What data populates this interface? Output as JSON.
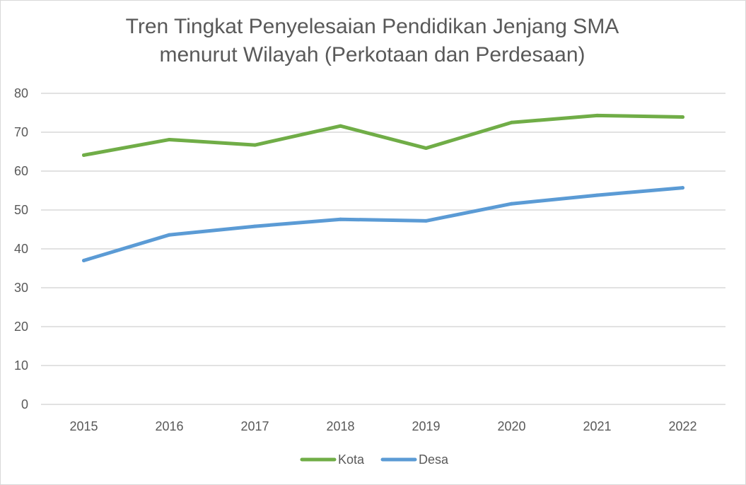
{
  "chart_data": {
    "type": "line",
    "title": [
      "Tren Tingkat Penyelesaian Pendidikan Jenjang SMA",
      "menurut Wilayah (Perkotaan dan Perdesaan)"
    ],
    "xlabel": "",
    "ylabel": "",
    "categories": [
      "2015",
      "2016",
      "2017",
      "2018",
      "2019",
      "2020",
      "2021",
      "2022"
    ],
    "series": [
      {
        "name": "Kota",
        "color": "#70AD47",
        "values": [
          64.1,
          68.1,
          66.7,
          71.6,
          65.9,
          72.5,
          74.3,
          73.9
        ]
      },
      {
        "name": "Desa",
        "color": "#5B9BD5",
        "values": [
          37.0,
          43.6,
          45.8,
          47.6,
          47.2,
          51.6,
          53.8,
          55.7
        ]
      }
    ],
    "ylim": [
      0,
      80
    ],
    "yticks": [
      "0",
      "10",
      "20",
      "30",
      "40",
      "50",
      "60",
      "70",
      "80"
    ],
    "grid": true,
    "legend_position": "bottom",
    "gridline_color": "#D9D9D9",
    "text_color": "#595959"
  }
}
